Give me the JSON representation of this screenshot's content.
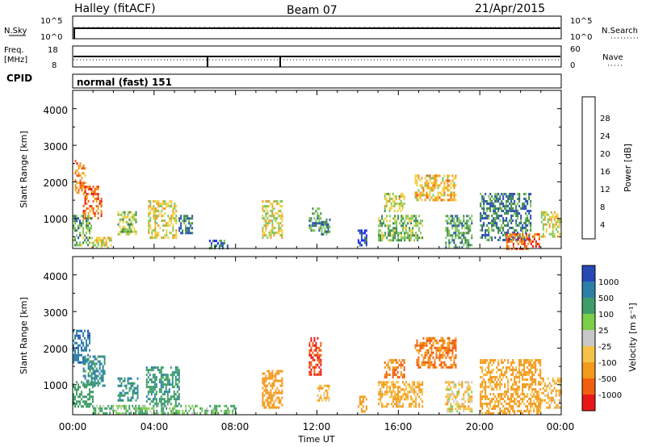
{
  "header": {
    "station": "Halley (fitACF)",
    "beam": "Beam 07",
    "date": "21/Apr/2015"
  },
  "strips": {
    "nsky_label": "N.Sky",
    "nsky_ticks": [
      "10^5",
      "10^0"
    ],
    "nsearch_label": "N.Search",
    "nsearch_ticks": [
      "10^5",
      "10^0"
    ],
    "freq_label": "Freq.",
    "freq_unit": "[MHz]",
    "freq_ticks": [
      "18",
      "8"
    ],
    "nave_label": "Nave",
    "nave_ticks": [
      "60",
      "0"
    ],
    "cpid_label": "CPID",
    "cpid_text": "normal (fast) 151"
  },
  "axes": {
    "ylabel": "Slant Range [km]",
    "xlabel": "Time UT",
    "yticks": [
      "1000",
      "2000",
      "3000",
      "4000"
    ],
    "xticks": [
      "00:00",
      "04:00",
      "08:00",
      "12:00",
      "16:00",
      "20:00",
      "00:00"
    ]
  },
  "power_scale": {
    "label": "Power [dB]",
    "ticks": [
      "4",
      "8",
      "12",
      "16",
      "20",
      "24",
      "28"
    ],
    "colors": [
      "#1a1aff",
      "#2a4fb0",
      "#3c8a4a",
      "#7fc55a",
      "#f0d040",
      "#f39a1d",
      "#f06010",
      "#e81818"
    ]
  },
  "velocity_scale": {
    "label": "Velocity [m s⁻¹]",
    "ticks": [
      "1000",
      "500",
      "100",
      "25",
      "-25",
      "-100",
      "-500",
      "-1000"
    ],
    "colors": [
      "#2848b8",
      "#2e7fa8",
      "#3f9e68",
      "#7ccf48",
      "#c8c8c8",
      "#f6c24a",
      "#f39a1d",
      "#f06010",
      "#e81818"
    ]
  },
  "chart_data": [
    {
      "type": "heatmap",
      "name": "Power",
      "xlabel": "Time UT",
      "ylabel": "Slant Range [km]",
      "xlim": [
        0,
        24
      ],
      "ylim": [
        180,
        4500
      ],
      "colorbar": {
        "label": "Power [dB]",
        "ticks": [
          4,
          8,
          12,
          16,
          20,
          24,
          28
        ]
      },
      "regions": [
        {
          "t": [
            0.1,
            0.6
          ],
          "r": [
            1700,
            2600
          ],
          "v": 26
        },
        {
          "t": [
            0.5,
            1.4
          ],
          "r": [
            1000,
            1900
          ],
          "v": 27
        },
        {
          "t": [
            0.0,
            0.9
          ],
          "r": [
            250,
            1100
          ],
          "v": 14
        },
        {
          "t": [
            0.9,
            1.9
          ],
          "r": [
            200,
            500
          ],
          "v": 20
        },
        {
          "t": [
            2.2,
            3.1
          ],
          "r": [
            600,
            1200
          ],
          "v": 17
        },
        {
          "t": [
            3.7,
            5.1
          ],
          "r": [
            500,
            1500
          ],
          "v": 20
        },
        {
          "t": [
            5.2,
            5.9
          ],
          "r": [
            600,
            1100
          ],
          "v": 11
        },
        {
          "t": [
            6.7,
            7.6
          ],
          "r": [
            220,
            420
          ],
          "v": 10
        },
        {
          "t": [
            9.3,
            10.3
          ],
          "r": [
            500,
            1500
          ],
          "v": 19
        },
        {
          "t": [
            11.6,
            12.2
          ],
          "r": [
            700,
            1300
          ],
          "v": 13
        },
        {
          "t": [
            12.2,
            12.6
          ],
          "r": [
            600,
            1000
          ],
          "v": 12
        },
        {
          "t": [
            14.0,
            14.4
          ],
          "r": [
            250,
            700
          ],
          "v": 7
        },
        {
          "t": [
            15.3,
            16.3
          ],
          "r": [
            1200,
            1700
          ],
          "v": 18
        },
        {
          "t": [
            15.0,
            17.2
          ],
          "r": [
            400,
            1100
          ],
          "v": 15
        },
        {
          "t": [
            16.8,
            18.8
          ],
          "r": [
            1500,
            2200
          ],
          "v": 22
        },
        {
          "t": [
            18.3,
            19.6
          ],
          "r": [
            200,
            1100
          ],
          "v": 13
        },
        {
          "t": [
            20.0,
            22.5
          ],
          "r": [
            400,
            1700
          ],
          "v": 11
        },
        {
          "t": [
            21.3,
            22.9
          ],
          "r": [
            200,
            600
          ],
          "v": 28
        },
        {
          "t": [
            23.0,
            24.0
          ],
          "r": [
            500,
            1200
          ],
          "v": 19
        }
      ]
    },
    {
      "type": "heatmap",
      "name": "Velocity",
      "xlabel": "Time UT",
      "ylabel": "Slant Range [km]",
      "xlim": [
        0,
        24
      ],
      "ylim": [
        180,
        4500
      ],
      "colorbar": {
        "label": "Velocity [m s⁻¹]",
        "ticks": [
          1000,
          500,
          100,
          25,
          -25,
          -100,
          -500,
          -1000
        ]
      },
      "regions": [
        {
          "t": [
            0.0,
            0.8
          ],
          "r": [
            1600,
            2500
          ],
          "v": 700
        },
        {
          "t": [
            0.5,
            1.6
          ],
          "r": [
            1000,
            1800
          ],
          "v": 300
        },
        {
          "t": [
            0.0,
            1.0
          ],
          "r": [
            400,
            1100
          ],
          "v": 200
        },
        {
          "t": [
            2.2,
            3.2
          ],
          "r": [
            600,
            1200
          ],
          "v": 300
        },
        {
          "t": [
            3.6,
            5.2
          ],
          "r": [
            500,
            1500
          ],
          "v": 250
        },
        {
          "t": [
            1.0,
            8.0
          ],
          "r": [
            200,
            450
          ],
          "v": 60
        },
        {
          "t": [
            9.3,
            10.3
          ],
          "r": [
            400,
            1400
          ],
          "v": -400
        },
        {
          "t": [
            11.6,
            12.2
          ],
          "r": [
            1300,
            2300
          ],
          "v": -1000
        },
        {
          "t": [
            12.0,
            12.6
          ],
          "r": [
            600,
            1000
          ],
          "v": -80
        },
        {
          "t": [
            14.0,
            14.4
          ],
          "r": [
            300,
            700
          ],
          "v": -300
        },
        {
          "t": [
            15.3,
            16.3
          ],
          "r": [
            1200,
            1700
          ],
          "v": -500
        },
        {
          "t": [
            15.0,
            17.2
          ],
          "r": [
            400,
            1100
          ],
          "v": -100
        },
        {
          "t": [
            16.8,
            18.8
          ],
          "r": [
            1500,
            2300
          ],
          "v": -500
        },
        {
          "t": [
            18.3,
            19.6
          ],
          "r": [
            300,
            1100
          ],
          "v": -60
        },
        {
          "t": [
            20.0,
            23.0
          ],
          "r": [
            200,
            1700
          ],
          "v": -150
        },
        {
          "t": [
            23.0,
            24.0
          ],
          "r": [
            400,
            1200
          ],
          "v": -90
        }
      ]
    },
    {
      "type": "line",
      "name": "Freq.",
      "ylabel": "[MHz]",
      "ylim": [
        8,
        18
      ],
      "x": [
        0,
        24
      ],
      "y": [
        11,
        11
      ]
    },
    {
      "type": "scatter",
      "name": "Nave",
      "ylim": [
        0,
        60
      ],
      "x": [
        0,
        24
      ],
      "y": [
        15,
        15
      ]
    }
  ]
}
